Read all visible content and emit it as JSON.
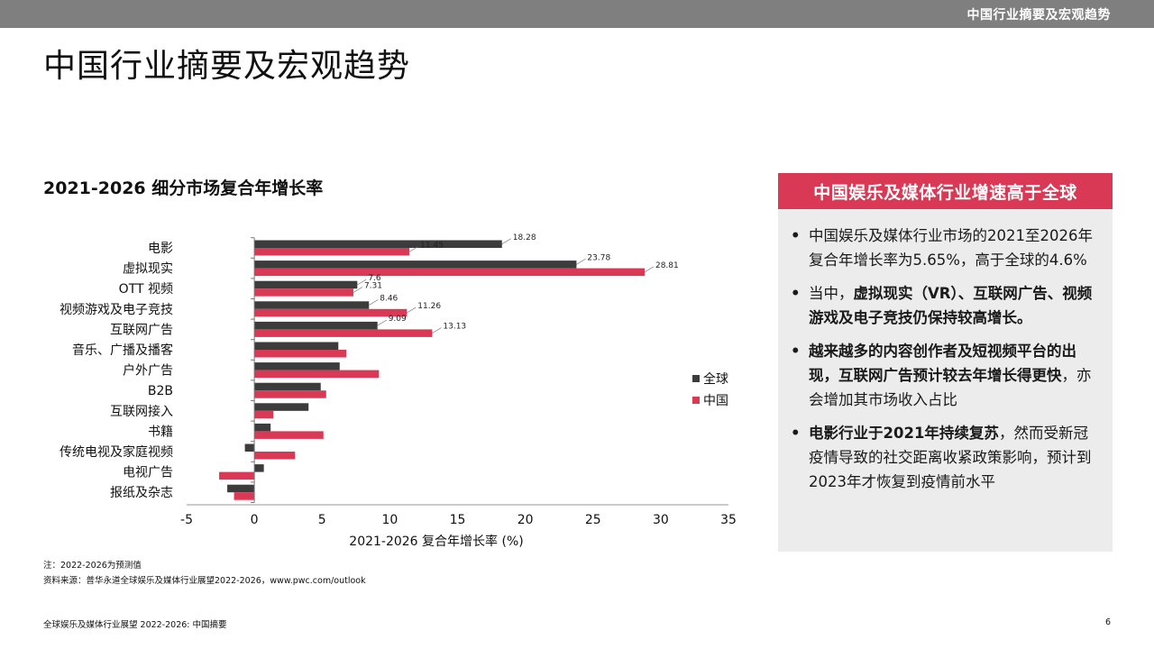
{
  "header": {
    "topbar_title": "中国行业摘要及宏观趋势",
    "page_title": "中国行业摘要及宏观趋势"
  },
  "chart_title": "2021-2026 细分市场复合年增长率",
  "chart_data": {
    "type": "bar",
    "orientation": "horizontal",
    "xlabel": "2021-2026 复合年增长率 (%)",
    "ylabel": "",
    "xlim": [
      -5,
      35
    ],
    "xticks": [
      -5,
      0,
      5,
      10,
      15,
      20,
      25,
      30,
      35
    ],
    "grid": false,
    "legend_position": "right",
    "categories": [
      "电影",
      "虚拟现实",
      "OTT 视频",
      "视频游戏及电子竞技",
      "互联网广告",
      "音乐、广播及播客",
      "户外广告",
      "B2B",
      "互联网接入",
      "书籍",
      "传统电视及家庭视频",
      "电视广告",
      "报纸及杂志"
    ],
    "series": [
      {
        "name": "全球",
        "color": "#3c3c3c",
        "values": [
          18.28,
          23.78,
          7.6,
          8.46,
          9.09,
          6.2,
          6.3,
          4.9,
          4.0,
          1.2,
          -0.7,
          0.7,
          -2.0
        ],
        "labels": [
          "18.28",
          "23.78",
          "7.6",
          "8.46",
          "9.09",
          "",
          "",
          "",
          "",
          "",
          "",
          "",
          ""
        ]
      },
      {
        "name": "中国",
        "color": "#d93954",
        "values": [
          11.45,
          28.81,
          7.31,
          11.26,
          13.13,
          6.8,
          9.2,
          5.3,
          1.4,
          5.1,
          3.0,
          -2.6,
          -1.5
        ],
        "labels": [
          "11.45",
          "28.81",
          "7.31",
          "11.26",
          "13.13",
          "",
          "",
          "",
          "",
          "",
          "",
          "",
          ""
        ]
      }
    ]
  },
  "callout": {
    "header": "中国娱乐及媒体行业增速高于全球",
    "bullets": [
      {
        "segments": [
          {
            "text": "中国娱乐及媒体行业市场的2021至2026年复合年增长率为5.65%，高于全球的4.6%",
            "bold": false
          }
        ]
      },
      {
        "segments": [
          {
            "text": "当中，",
            "bold": false
          },
          {
            "text": "虚拟现实（VR）、互联网广告、视频游戏及电子竞技仍保持较高增长。",
            "bold": true
          }
        ]
      },
      {
        "segments": [
          {
            "text": "越来越多的内容创作者及短视频平台的出现，互联网广告预计较去年增长得更快",
            "bold": true
          },
          {
            "text": "，亦会增加其市场收入占比",
            "bold": false
          }
        ]
      },
      {
        "segments": [
          {
            "text": "电影行业于2021年持续复苏",
            "bold": true
          },
          {
            "text": "，然而受新冠疫情导致的社交距离收紧政策影响，预计到2023年才恢复到疫情前水平",
            "bold": false
          }
        ]
      }
    ]
  },
  "notes": [
    "注：2022-2026为预测值",
    "资料来源：普华永道全球娱乐及媒体行业展望2022-2026，www.pwc.com/outlook"
  ],
  "footer": {
    "left": "全球娱乐及媒体行业展望 2022-2026: 中国摘要",
    "page_number": "6"
  }
}
